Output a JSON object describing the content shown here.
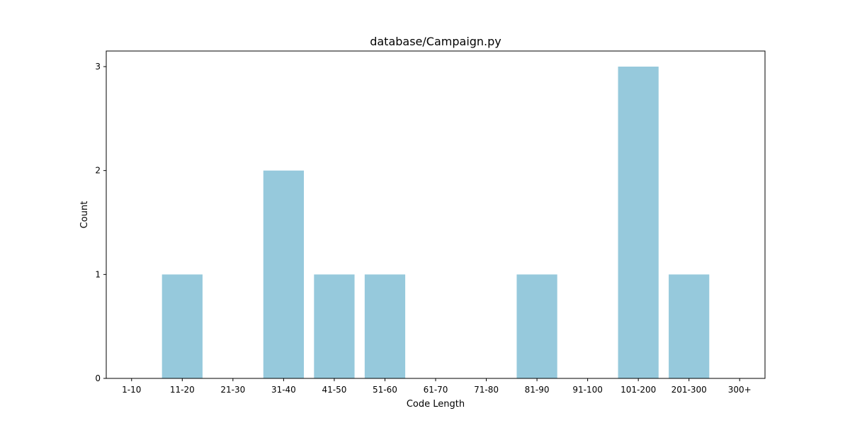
{
  "chart_data": {
    "type": "bar",
    "title": "database/Campaign.py",
    "xlabel": "Code Length",
    "ylabel": "Count",
    "categories": [
      "1-10",
      "11-20",
      "21-30",
      "31-40",
      "41-50",
      "51-60",
      "61-70",
      "71-80",
      "81-90",
      "91-100",
      "101-200",
      "201-300",
      "300+"
    ],
    "values": [
      0,
      1,
      0,
      2,
      1,
      1,
      0,
      0,
      1,
      0,
      3,
      1,
      0
    ],
    "yticks": [
      0,
      1,
      2,
      3
    ],
    "ylim": [
      0,
      3.15
    ],
    "grid": false,
    "legend": "none",
    "bar_color": "#96c9dc"
  }
}
